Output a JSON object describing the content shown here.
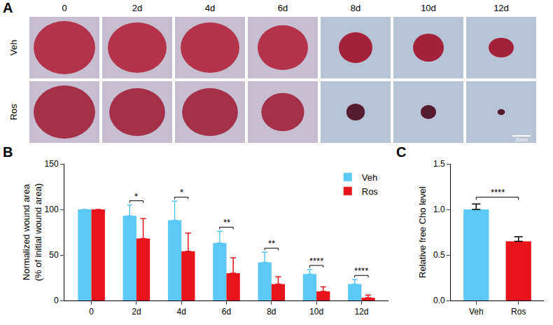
{
  "panel_a": {
    "letter": "A",
    "columns": [
      "0",
      "2d",
      "4d",
      "6d",
      "8d",
      "10d",
      "12d"
    ],
    "rows": [
      "Veh",
      "Ros"
    ],
    "scale_bar": "2mm"
  },
  "chart_data": [
    {
      "letter": "B",
      "type": "bar",
      "categories": [
        "0",
        "2d",
        "4d",
        "6d",
        "8d",
        "10d",
        "12d"
      ],
      "series": [
        {
          "name": "Veh",
          "color": "#5bc8f5",
          "values": [
            100,
            93,
            88,
            63,
            42,
            29,
            18
          ],
          "errors": [
            0,
            12,
            21,
            13,
            11,
            5,
            5
          ]
        },
        {
          "name": "Ros",
          "color": "#e8141b",
          "values": [
            100,
            68,
            54,
            30,
            18,
            10,
            3
          ],
          "errors": [
            0,
            22,
            20,
            17,
            8,
            5,
            3
          ]
        }
      ],
      "significance": [
        null,
        "*",
        "*",
        "**",
        "**",
        "****",
        "****"
      ],
      "ylabel": [
        "Normalized wound area",
        "(% of initial wound area)"
      ],
      "ylim": [
        0,
        150
      ],
      "yticks": [
        0,
        50,
        100,
        150
      ],
      "grid": false,
      "legend": "top-right"
    },
    {
      "letter": "C",
      "type": "bar",
      "categories": [
        "Veh",
        "Ros"
      ],
      "values": [
        1.0,
        0.65
      ],
      "errors": [
        0.06,
        0.05
      ],
      "colors": [
        "#5bc8f5",
        "#e8141b"
      ],
      "significance": "****",
      "ylabel": "Relative free Cho level",
      "ylim": [
        0,
        1.5
      ],
      "yticks": [
        {
          "value": 0,
          "label": "0.0"
        },
        0.5,
        {
          "value": 1,
          "label": "1.0"
        },
        1.5
      ],
      "grid": false
    }
  ]
}
